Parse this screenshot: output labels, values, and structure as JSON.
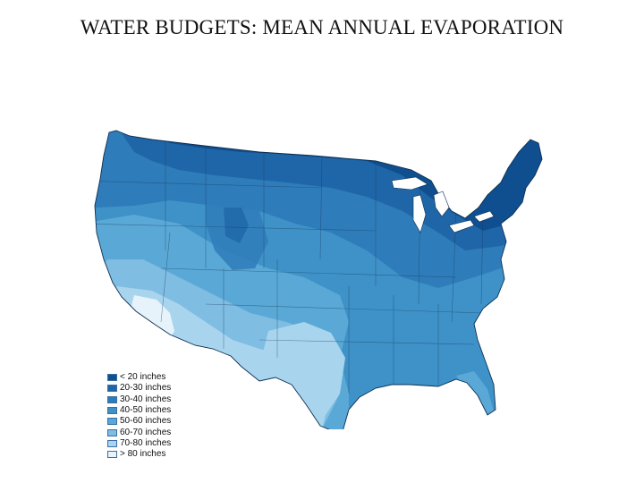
{
  "title": "WATER BUDGETS: MEAN ANNUAL EVAPORATION",
  "legend": [
    {
      "label": "< 20 inches",
      "color": "#0f4f8f"
    },
    {
      "label": "20-30 inches",
      "color": "#1f66a8"
    },
    {
      "label": "30-40 inches",
      "color": "#2f7cba"
    },
    {
      "label": "40-50 inches",
      "color": "#3e92c8"
    },
    {
      "label": "50-60 inches",
      "color": "#5aa8d6"
    },
    {
      "label": "60-70 inches",
      "color": "#7fbde2"
    },
    {
      "label": "70-80 inches",
      "color": "#a9d4ee"
    },
    {
      "label": "> 80 inches",
      "color": "#e6f3fb"
    }
  ]
}
